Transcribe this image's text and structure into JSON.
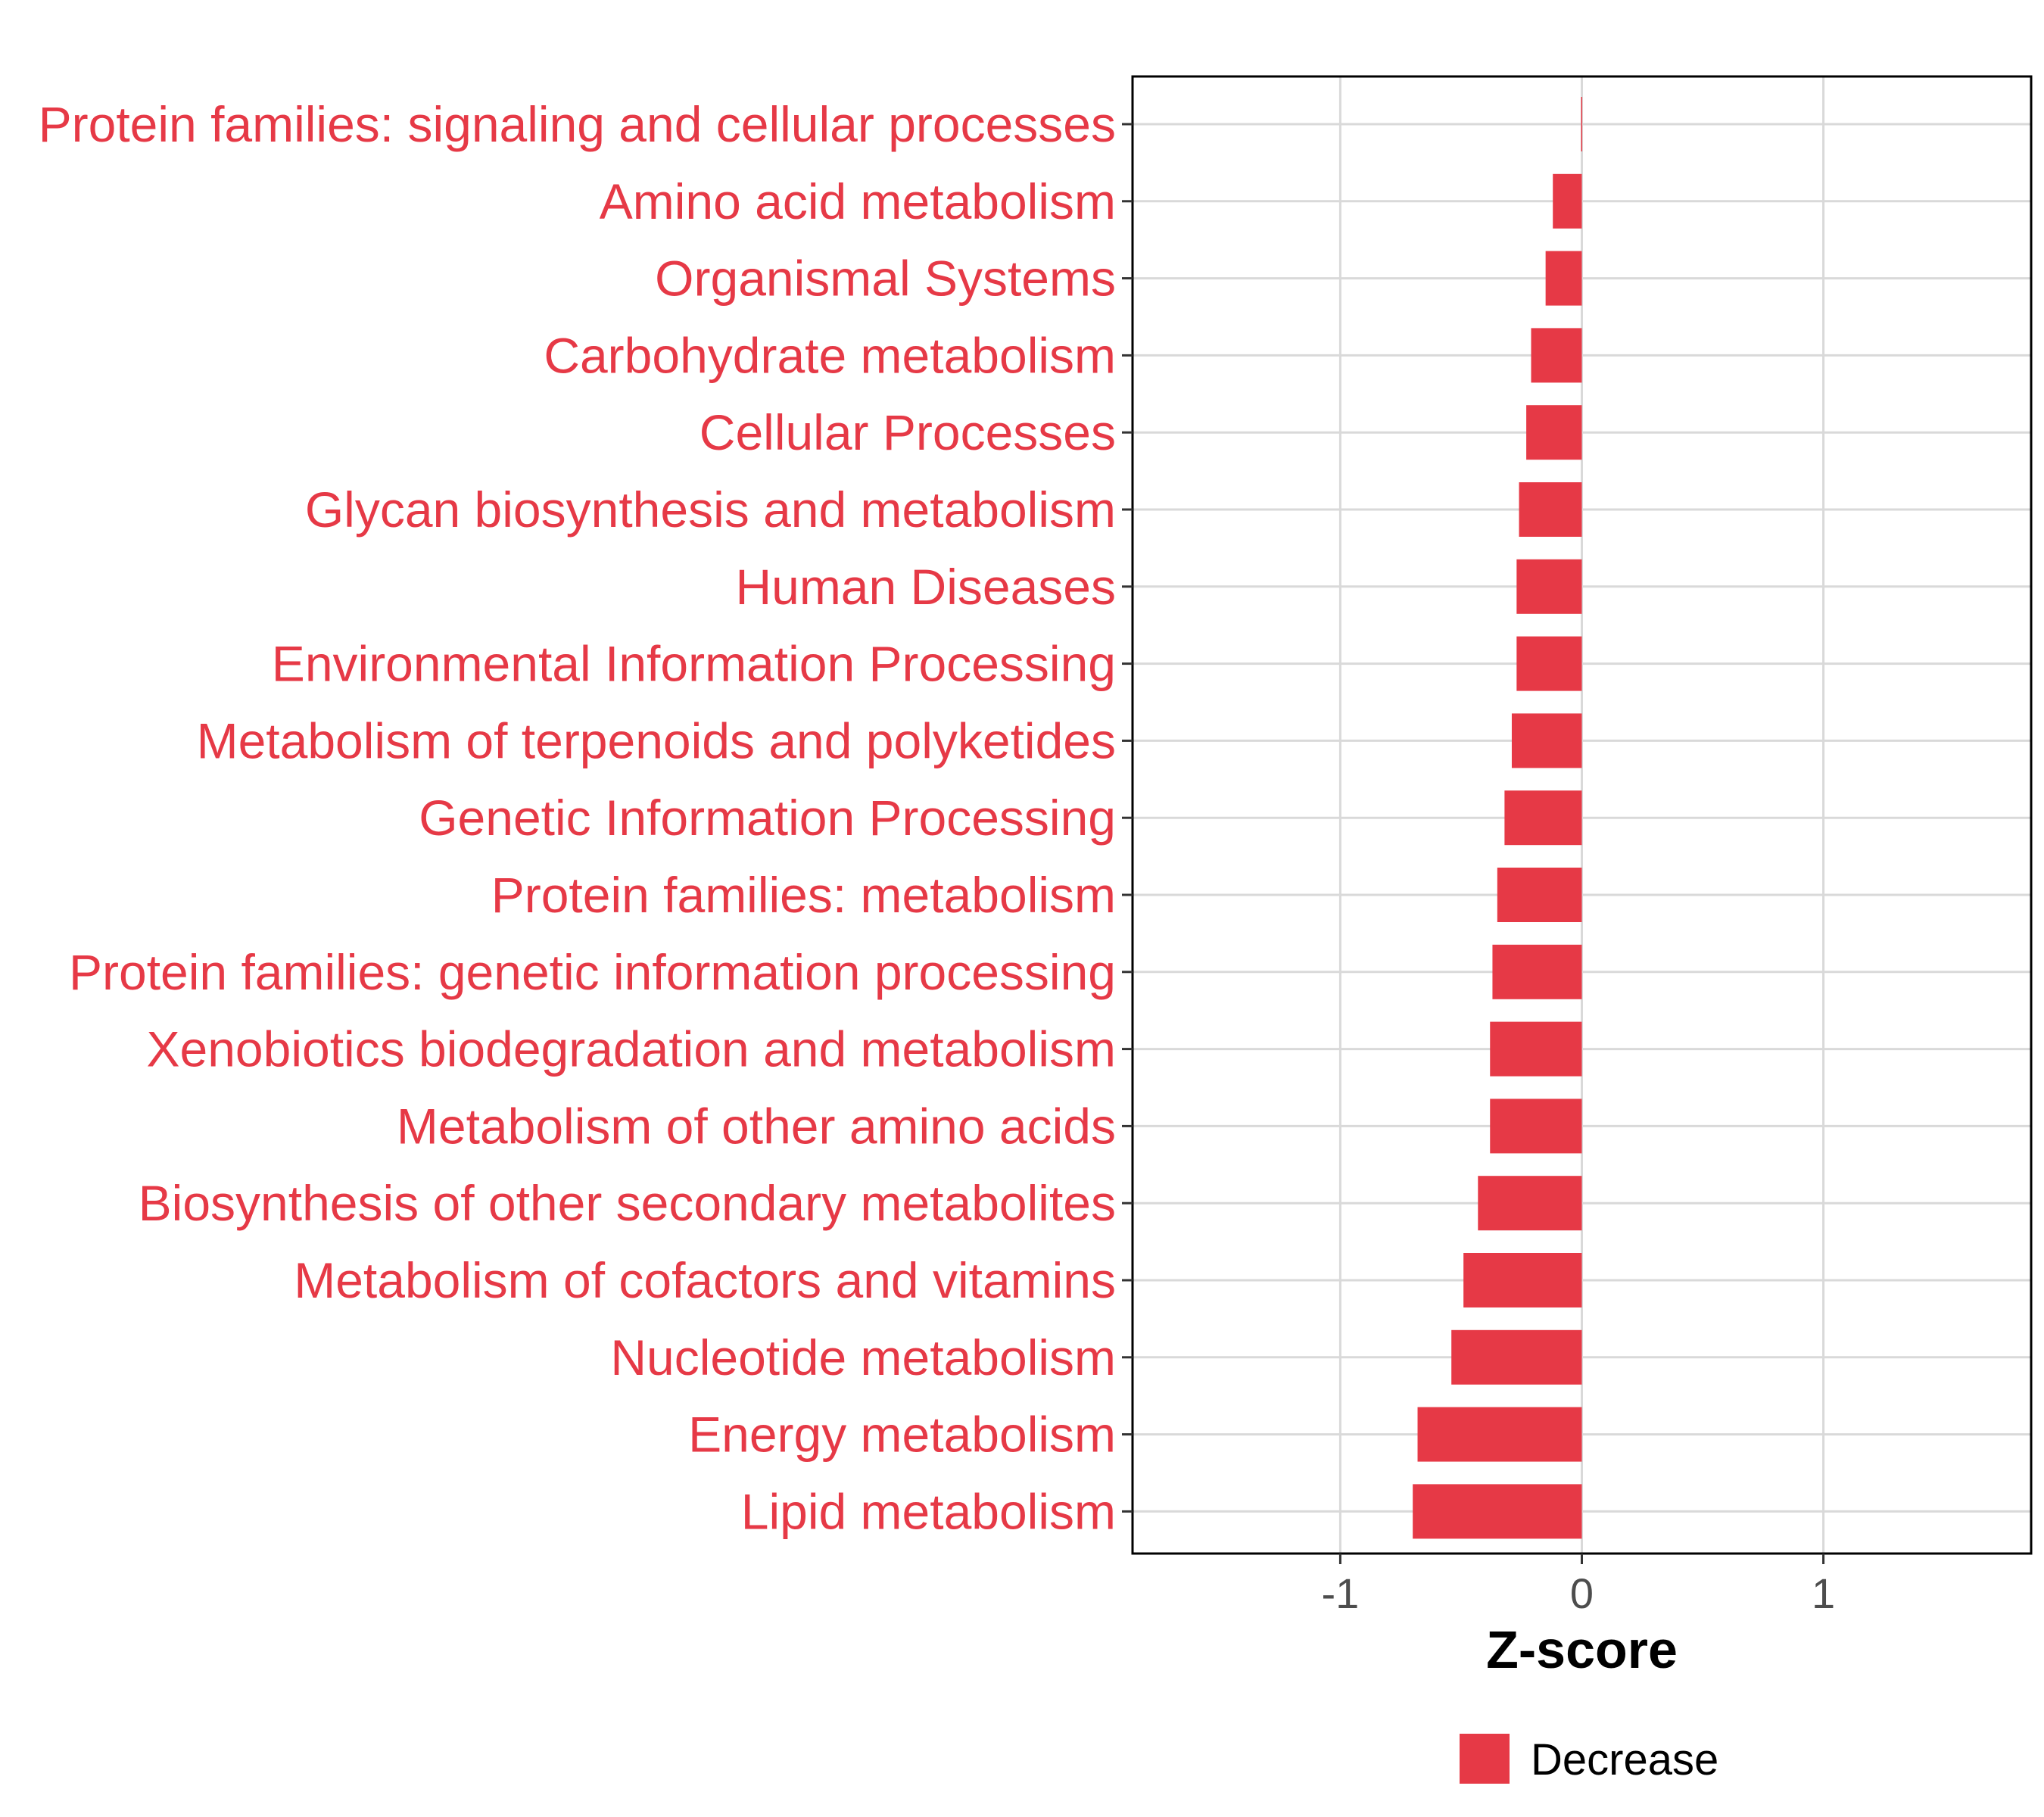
{
  "chart_data": {
    "type": "bar",
    "orientation": "horizontal",
    "categories": [
      "Protein families: signaling and cellular processes",
      "Amino acid metabolism",
      "Organismal Systems",
      "Carbohydrate metabolism",
      "Cellular Processes",
      "Glycan biosynthesis and metabolism",
      "Human Diseases",
      "Environmental Information Processing",
      "Metabolism of terpenoids and polyketides",
      "Genetic Information Processing",
      "Protein families: metabolism",
      "Protein families: genetic information processing",
      "Xenobiotics biodegradation and metabolism",
      "Metabolism of other amino acids",
      "Biosynthesis of other secondary metabolites",
      "Metabolism of cofactors and vitamins",
      "Nucleotide metabolism",
      "Energy metabolism",
      "Lipid metabolism"
    ],
    "values": [
      -0.003,
      -0.12,
      -0.15,
      -0.21,
      -0.23,
      -0.26,
      -0.27,
      -0.27,
      -0.29,
      -0.32,
      -0.35,
      -0.37,
      -0.38,
      -0.38,
      -0.43,
      -0.49,
      -0.54,
      -0.68,
      -0.7
    ],
    "xlabel": "Z-score",
    "ylabel": "",
    "xlim": [
      -1.86,
      1.86
    ],
    "xticks": [
      -1,
      0,
      1
    ],
    "xtick_labels": [
      "-1",
      "0",
      "1"
    ],
    "grid": true,
    "legend": {
      "position": "bottom",
      "entries": [
        {
          "label": "Decrease",
          "color": "#e63946"
        }
      ]
    },
    "colors": {
      "bar": "#e63946",
      "label": "#e63946",
      "grid": "#d9d9d9",
      "tick_text": "#4d4d4d",
      "panel_border": "#000000"
    }
  }
}
